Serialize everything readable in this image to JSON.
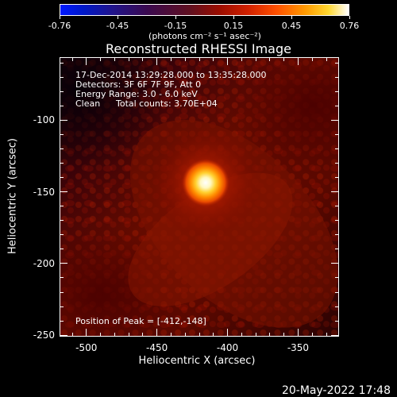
{
  "colorbar": {
    "ticks": [
      "-0.76",
      "-0.45",
      "-0.15",
      "0.15",
      "0.45",
      "0.76"
    ],
    "unit_label": "(photons cm⁻² s⁻¹ asec⁻²)"
  },
  "plot": {
    "title": "Reconstructed RHESSI Image",
    "info": {
      "line1": "17-Dec-2014 13:29:28.000 to 13:35:28.000",
      "line2": "Detectors: 3F 6F 7F 9F, Att 0",
      "line3": "Energy Range: 3.0 - 6.0 keV",
      "line4": "Clean",
      "line4b": "Total counts: 3.70E+04"
    },
    "peak_label": "Position of Peak = [-412,-148]",
    "peak_position": [
      -412,
      -148
    ],
    "x_axis": {
      "label": "Heliocentric X (arcsec)",
      "ticks": [
        "-500",
        "-450",
        "-400",
        "-350"
      ],
      "range": [
        -519,
        -321
      ]
    },
    "y_axis": {
      "label": "Heliocentric Y (arcsec)",
      "ticks": [
        "-100",
        "-150",
        "-200",
        "-250"
      ],
      "range": [
        -251,
        -56
      ]
    }
  },
  "footer": {
    "timestamp": "20-May-2022 17:48"
  }
}
